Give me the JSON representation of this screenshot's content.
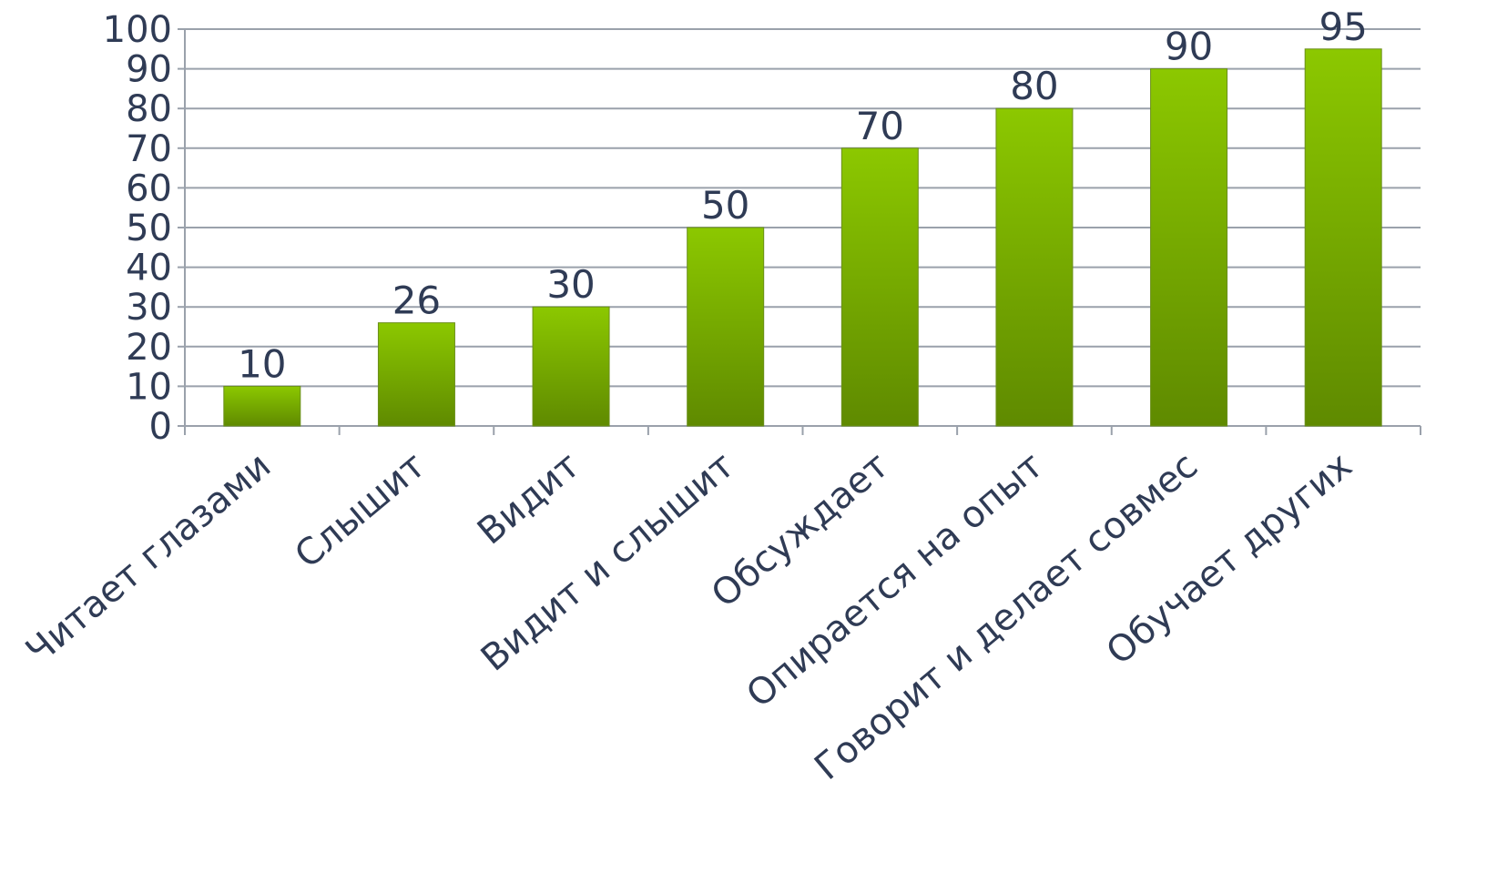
{
  "chart_data": {
    "type": "bar",
    "categories": [
      "Читает глазами",
      "Слышит",
      "Видит",
      "Видит и слышит",
      "Обсуждает",
      "Опирается на опыт",
      "Говорит и делает совмес",
      "Обучает других"
    ],
    "values": [
      10,
      26,
      30,
      50,
      70,
      80,
      90,
      95
    ],
    "data_labels": [
      "10",
      "26",
      "30",
      "50",
      "70",
      "80",
      "90",
      "95"
    ],
    "ylim": [
      0,
      100
    ],
    "yticks": [
      "0",
      "10",
      "20",
      "30",
      "40",
      "50",
      "60",
      "70",
      "80",
      "90",
      "100"
    ],
    "grid": true,
    "legend": "none",
    "bar_color_top": "#8cc800",
    "bar_color_bottom": "#5f8a00"
  }
}
